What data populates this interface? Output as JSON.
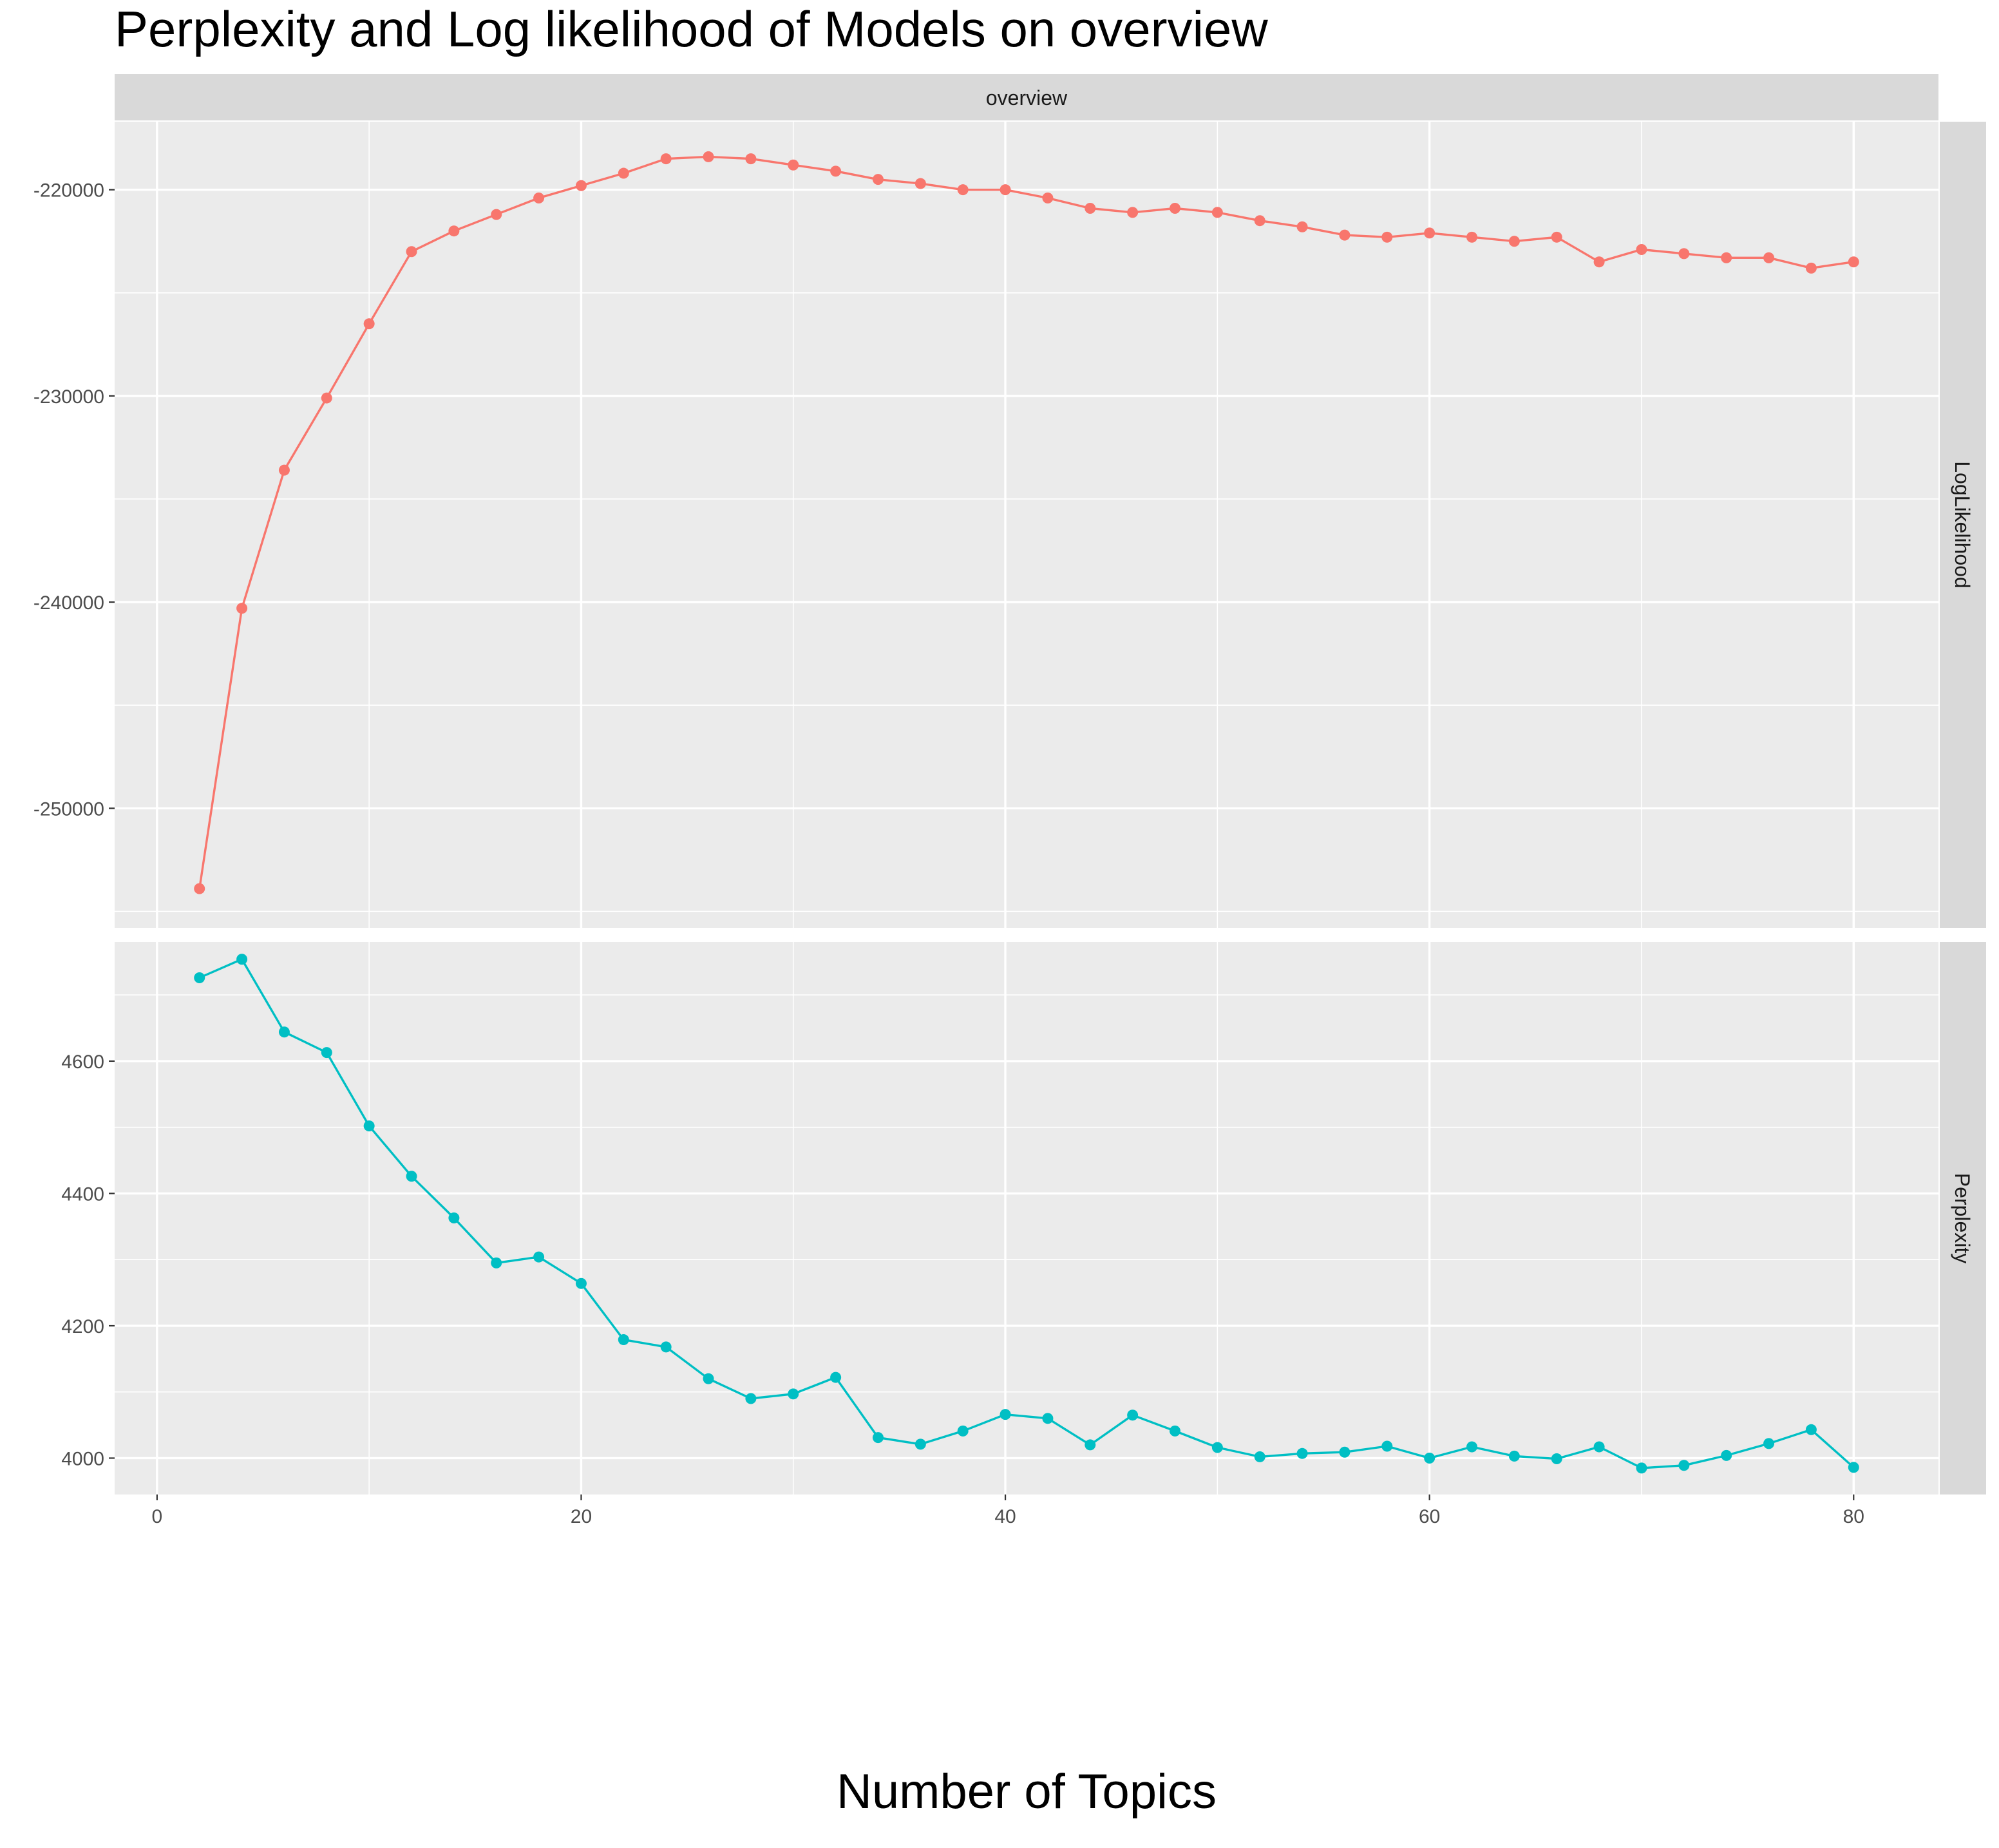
{
  "chart_data": {
    "type": "line",
    "title": "Perplexity and Log likelihood of Models on overview",
    "xlabel": "Number of Topics",
    "x_ticks": [
      0,
      20,
      40,
      60,
      80
    ],
    "xlim": [
      -2,
      84
    ],
    "column_strip": "overview",
    "grid": true,
    "legend": "none",
    "panels": [
      {
        "strip": "LogLikelihood",
        "color": "#F8766D",
        "ylim": [
          -255800,
          -216700
        ],
        "y_ticks": [
          -250000,
          -240000,
          -230000,
          -220000
        ],
        "y_tick_labels": [
          "-250000",
          "-240000",
          "-230000",
          "-220000"
        ],
        "x": [
          2,
          4,
          6,
          8,
          10,
          12,
          14,
          16,
          18,
          20,
          22,
          24,
          26,
          28,
          30,
          32,
          34,
          36,
          38,
          40,
          42,
          44,
          46,
          48,
          50,
          52,
          54,
          56,
          58,
          60,
          62,
          64,
          66,
          68,
          70,
          72,
          74,
          76,
          78,
          80
        ],
        "values": [
          -253900,
          -240300,
          -233600,
          -230100,
          -226500,
          -223000,
          -222000,
          -221200,
          -220400,
          -219800,
          -219200,
          -218500,
          -218400,
          -218500,
          -218800,
          -219100,
          -219500,
          -219700,
          -220000,
          -220000,
          -220400,
          -220900,
          -221100,
          -220900,
          -221100,
          -221500,
          -221800,
          -222200,
          -222300,
          -222100,
          -222300,
          -222500,
          -222300,
          -223500,
          -222900,
          -223100,
          -223300,
          -223300,
          -223800,
          -223500
        ]
      },
      {
        "strip": "Perplexity",
        "color": "#00BFC4",
        "ylim": [
          3945,
          4780
        ],
        "y_ticks": [
          4000,
          4200,
          4400,
          4600
        ],
        "y_tick_labels": [
          "4000",
          "4200",
          "4400",
          "4600"
        ],
        "x": [
          2,
          4,
          6,
          8,
          10,
          12,
          14,
          16,
          18,
          20,
          22,
          24,
          26,
          28,
          30,
          32,
          34,
          36,
          38,
          40,
          42,
          44,
          46,
          48,
          50,
          52,
          54,
          56,
          58,
          60,
          62,
          64,
          66,
          68,
          70,
          72,
          74,
          76,
          78,
          80
        ],
        "values": [
          4726,
          4754,
          4644,
          4613,
          4502,
          4426,
          4363,
          4295,
          4304,
          4264,
          4179,
          4168,
          4120,
          4090,
          4097,
          4122,
          4031,
          4021,
          4041,
          4066,
          4060,
          4020,
          4065,
          4041,
          4016,
          4002,
          4007,
          4009,
          4018,
          4000,
          4017,
          4003,
          3999,
          4017,
          3985,
          3989,
          4004,
          4022,
          4043,
          3986
        ]
      }
    ]
  }
}
